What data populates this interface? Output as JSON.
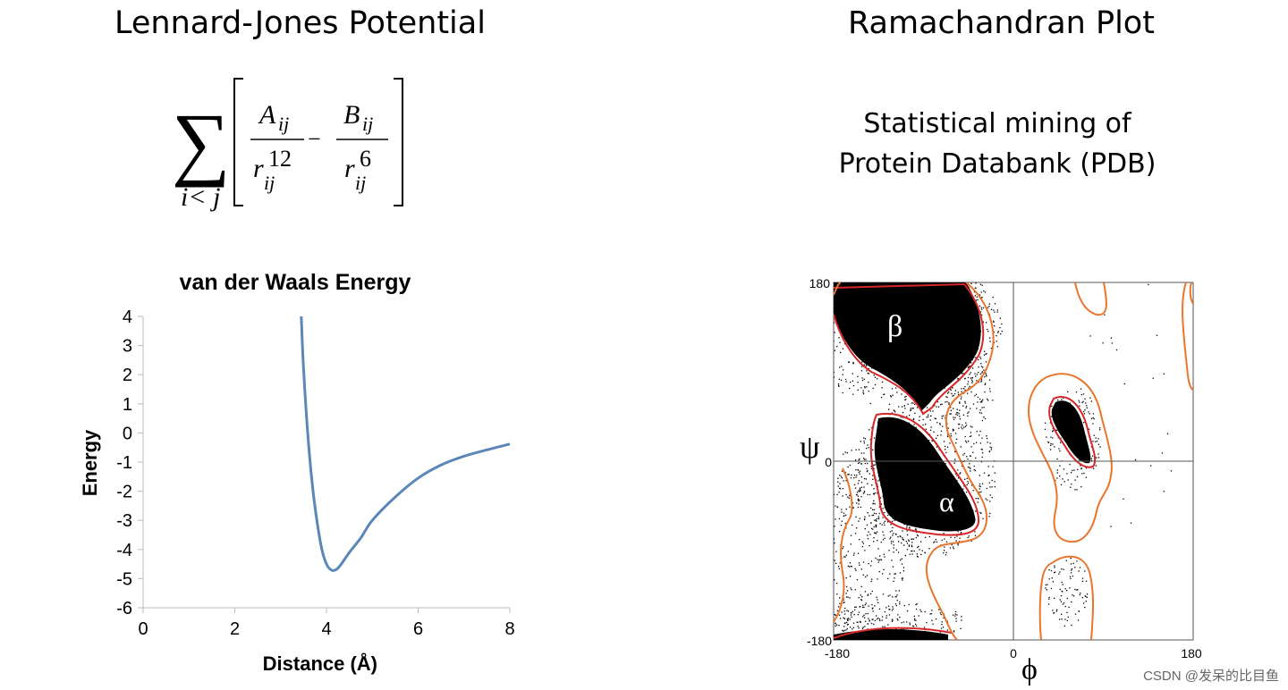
{
  "left_panel": {
    "title": "Lennard-Jones Potential",
    "formula": {
      "sum_symbol": "∑",
      "sum_index": "i< j",
      "numerator_a": "A",
      "numerator_b": "B",
      "subscript": "ij",
      "denominator_var": "r",
      "exp_a": "12",
      "exp_b": "6",
      "operator": "−"
    }
  },
  "right_panel": {
    "title": "Ramachandran Plot",
    "subtitle_line1": "Statistical mining of",
    "subtitle_line2": "Protein Databank (PDB)"
  },
  "chart_data": [
    {
      "type": "line",
      "title": "van der Waals Energy",
      "xlabel": "Distance (Å)",
      "ylabel": "Energy",
      "xlim": [
        0,
        8
      ],
      "ylim": [
        -6,
        4
      ],
      "x_ticks": [
        "0",
        "2",
        "4",
        "6",
        "8"
      ],
      "y_ticks": [
        "4",
        "3",
        "2",
        "1",
        "0",
        "-1",
        "-2",
        "-3",
        "-4",
        "-5",
        "-6"
      ],
      "series": [
        {
          "name": "van der Waals energy",
          "color": "#5b87b8",
          "points": [
            [
              3.45,
              4.0
            ],
            [
              3.5,
              2.2
            ],
            [
              3.6,
              -0.2
            ],
            [
              3.7,
              -1.9
            ],
            [
              3.8,
              -3.1
            ],
            [
              3.9,
              -4.0
            ],
            [
              4.0,
              -4.5
            ],
            [
              4.1,
              -4.7
            ],
            [
              4.2,
              -4.7
            ],
            [
              4.3,
              -4.55
            ],
            [
              4.5,
              -4.1
            ],
            [
              4.75,
              -3.6
            ],
            [
              5.0,
              -3.0
            ],
            [
              5.5,
              -2.2
            ],
            [
              6.0,
              -1.55
            ],
            [
              6.5,
              -1.1
            ],
            [
              7.0,
              -0.8
            ],
            [
              7.5,
              -0.58
            ],
            [
              8.0,
              -0.38
            ]
          ]
        }
      ]
    },
    {
      "type": "scatter",
      "title": "Ramachandran Plot",
      "xlabel": "ϕ",
      "ylabel": "ψ",
      "xlim": [
        -180,
        180
      ],
      "ylim": [
        -180,
        180
      ],
      "x_ticks": [
        "-180",
        "0",
        "180"
      ],
      "y_ticks": [
        "180",
        "0",
        "-180"
      ],
      "region_labels": [
        "β",
        "α"
      ],
      "colors": {
        "core_contour": "#d62728",
        "allowed_contour": "#e8762c",
        "points": "#000000"
      }
    }
  ],
  "watermark": "CSDN @发呆的比目鱼"
}
